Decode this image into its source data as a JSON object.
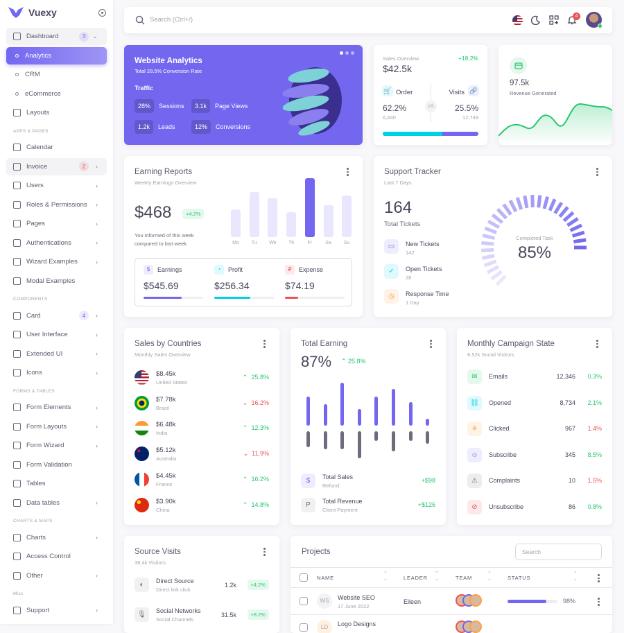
{
  "brand": {
    "name": "Vuexy",
    "color": "#7367f0"
  },
  "sidebar": {
    "items": [
      {
        "label": "Dashboard",
        "icon": "home-icon",
        "badge": "3",
        "badge_color": "#7367f0",
        "expanded": true
      },
      {
        "label": "Analytics",
        "sub": true,
        "active": true
      },
      {
        "label": "CRM",
        "sub": true
      },
      {
        "label": "eCommerce",
        "sub": true
      },
      {
        "label": "Layouts",
        "icon": "layout-icon"
      },
      {
        "section": "APPS & PAGES"
      },
      {
        "label": "Calendar",
        "icon": "calendar-icon"
      },
      {
        "label": "Invoice",
        "icon": "invoice-icon",
        "badge": "2",
        "badge_color": "#ea5455",
        "chevron": true,
        "hover": true
      },
      {
        "label": "Users",
        "icon": "users-icon",
        "chevron": true
      },
      {
        "label": "Roles & Permissions",
        "icon": "settings-icon",
        "chevron": true
      },
      {
        "label": "Pages",
        "icon": "file-icon",
        "chevron": true
      },
      {
        "label": "Authentications",
        "icon": "lock-icon",
        "chevron": true
      },
      {
        "label": "Wizard Examples",
        "icon": "wizard-icon",
        "chevron": true
      },
      {
        "label": "Modal Examples",
        "icon": "square-icon"
      },
      {
        "section": "COMPONENTS"
      },
      {
        "label": "Card",
        "icon": "card-icon",
        "badge": "4",
        "badge_color": "#7367f0",
        "chevron": true
      },
      {
        "label": "User Interface",
        "icon": "ui-icon",
        "chevron": true
      },
      {
        "label": "Extended UI",
        "icon": "extended-icon",
        "chevron": true
      },
      {
        "label": "Icons",
        "icon": "brand-icon",
        "chevron": true
      },
      {
        "section": "FORMS & TABLES"
      },
      {
        "label": "Form Elements",
        "icon": "toggle-icon",
        "chevron": true
      },
      {
        "label": "Form Layouts",
        "icon": "form-layout-icon",
        "chevron": true
      },
      {
        "label": "Form Wizard",
        "icon": "wizard-icon",
        "chevron": true
      },
      {
        "label": "Form Validation",
        "icon": "checkbox-icon"
      },
      {
        "label": "Tables",
        "icon": "table-icon"
      },
      {
        "label": "Data tables",
        "icon": "grid-icon",
        "chevron": true
      },
      {
        "section": "CHARTS & MAPS"
      },
      {
        "label": "Charts",
        "icon": "chart-icon",
        "chevron": true
      },
      {
        "label": "Access Control",
        "icon": "command-icon"
      },
      {
        "label": "Other",
        "icon": "dots-icon",
        "chevron": true
      },
      {
        "section": "Misc"
      },
      {
        "label": "Support",
        "icon": "lifebuoy-icon",
        "chevron": true
      }
    ]
  },
  "header": {
    "search_placeholder": "Search (Ctrl+/)",
    "notifications": "4"
  },
  "analytics": {
    "title": "Website Analytics",
    "subtitle": "Total 28.5% Conversion Rate",
    "traffic": "Traffic",
    "stats": [
      {
        "v": "28%",
        "l": "Sessions"
      },
      {
        "v": "3.1k",
        "l": "Page Views"
      },
      {
        "v": "1.2k",
        "l": "Leads"
      },
      {
        "v": "12%",
        "l": "Conversions"
      }
    ]
  },
  "sales": {
    "title": "Sales Overview",
    "change": "+18.2%",
    "value": "$42.5k",
    "order_label": "Order",
    "order_pct": "62.2%",
    "order_count": "6,440",
    "vs": "VS",
    "visits_label": "Visits",
    "visits_pct": "25.5%",
    "visits_count": "12,749",
    "order_share": 62.2
  },
  "revenue": {
    "value": "97.5k",
    "label": "Revenue Generated"
  },
  "earning": {
    "title": "Earning Reports",
    "subtitle": "Weekly Earnings Overview",
    "value": "$468",
    "change": "+4.2%",
    "note1": "You informed of this week",
    "note2": "compared to last week",
    "days": [
      "Mo",
      "Tu",
      "We",
      "Th",
      "Fr",
      "Sa",
      "Su"
    ],
    "bars": [
      40,
      65,
      56,
      36,
      85,
      46,
      60
    ],
    "highlight": 4,
    "stats": [
      {
        "label": "Earnings",
        "value": "$545.69",
        "color": "#7367f0",
        "pct": 64
      },
      {
        "label": "Profit",
        "value": "$256.34",
        "color": "#00cfe8",
        "pct": 60
      },
      {
        "label": "Expense",
        "value": "$74.19",
        "color": "#ea5455",
        "pct": 22
      }
    ]
  },
  "support": {
    "title": "Support Tracker",
    "subtitle": "Last 7 Days",
    "total": "164",
    "total_label": "Total Tickets",
    "items": [
      {
        "label": "New Tickets",
        "value": "142",
        "color": "#7367f0"
      },
      {
        "label": "Open Tickets",
        "value": "28",
        "color": "#00cfe8"
      },
      {
        "label": "Response Time",
        "value": "1 Day",
        "color": "#ff9f43"
      }
    ],
    "gauge_label": "Completed Task",
    "gauge_value": "85%",
    "gauge_pct": 85
  },
  "countries": {
    "title": "Sales by Countries",
    "subtitle": "Monthly Sales Overview",
    "rows": [
      {
        "v": "$8.45k",
        "c": "United States",
        "ch": "25.8%",
        "up": true
      },
      {
        "v": "$7.78k",
        "c": "Brazil",
        "ch": "16.2%",
        "up": false
      },
      {
        "v": "$6.48k",
        "c": "India",
        "ch": "12.3%",
        "up": true
      },
      {
        "v": "$5.12k",
        "c": "Australia",
        "ch": "11.9%",
        "up": false
      },
      {
        "v": "$4.45k",
        "c": "France",
        "ch": "16.2%",
        "up": true
      },
      {
        "v": "$3.90k",
        "c": "China",
        "ch": "14.8%",
        "up": true
      }
    ]
  },
  "total_earning": {
    "title": "Total Earning",
    "value": "87%",
    "change": "25.8%",
    "up": [
      42,
      31,
      62,
      24,
      42,
      53,
      34,
      10
    ],
    "down": [
      23,
      26,
      26,
      39,
      14,
      29,
      14,
      18
    ],
    "items": [
      {
        "label": "Total Sales",
        "sub": "Refund",
        "value": "+$98"
      },
      {
        "label": "Total Revenue",
        "sub": "Client Payment",
        "value": "+$126"
      }
    ]
  },
  "campaign": {
    "title": "Monthly Campaign State",
    "subtitle": "8.52k Social Visitors",
    "rows": [
      {
        "l": "Emails",
        "n": "12,346",
        "p": "0.3%",
        "up": true,
        "color": "#28c76f"
      },
      {
        "l": "Opened",
        "n": "8,734",
        "p": "2.1%",
        "up": true,
        "color": "#00cfe8"
      },
      {
        "l": "Clicked",
        "n": "967",
        "p": "1.4%",
        "up": false,
        "color": "#ff9f43"
      },
      {
        "l": "Subscribe",
        "n": "345",
        "p": "8.5%",
        "up": true,
        "color": "#7367f0"
      },
      {
        "l": "Complaints",
        "n": "10",
        "p": "1.5%",
        "up": false,
        "color": "#6f6b7d"
      },
      {
        "l": "Unsubscribe",
        "n": "86",
        "p": "0.8%",
        "up": true,
        "color": "#ea5455"
      }
    ]
  },
  "source": {
    "title": "Source Visits",
    "subtitle": "38.4k Visitors",
    "rows": [
      {
        "l": "Direct Source",
        "s": "Direct link click",
        "v": "1.2k",
        "c": "+4.2%"
      },
      {
        "l": "Social Networks",
        "s": "Social Channels",
        "v": "31.5k",
        "c": "+8.2%"
      }
    ]
  },
  "projects": {
    "title": "Projects",
    "search_placeholder": "Search",
    "cols": [
      "NAME",
      "LEADER",
      "TEAM",
      "STATUS"
    ],
    "rows": [
      {
        "initials": "WS",
        "name": "Website SEO",
        "date": "17 June 2022",
        "leader": "Eileen",
        "progress": 98,
        "pct": "98%"
      },
      {
        "initials": "LD",
        "name": "Logo Designs",
        "date": "",
        "leader": "",
        "progress": 0,
        "pct": ""
      }
    ]
  }
}
